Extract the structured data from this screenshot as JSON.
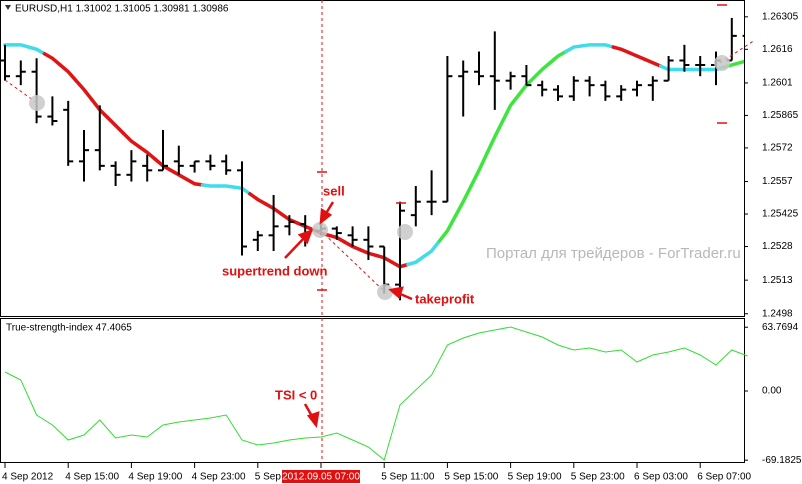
{
  "chart_data": {
    "type": "ohlc",
    "title": "EURUSD,H1  1.31002 1.31005 1.30981 1.30986",
    "watermark": "Портал для трейдеров - ForTrader.ru",
    "categories": [
      "4 Sep 2012",
      null,
      null,
      null,
      "4 Sep 15:00",
      null,
      null,
      null,
      "4 Sep 19:00",
      null,
      null,
      null,
      "4 Sep 23:00",
      null,
      null,
      null,
      "5 Sep",
      null,
      null,
      null,
      "2012.09.05 07:00",
      null,
      null,
      null,
      "5 Sep 11:00",
      null,
      null,
      null,
      "5 Sep 15:00",
      null,
      null,
      null,
      "5 Sep 19:00",
      null,
      null,
      null,
      "5 Sep 23:00",
      null,
      null,
      null,
      "6 Sep 03:00",
      null,
      null,
      null,
      "6 Sep 07:00",
      null,
      null,
      null
    ],
    "open": [
      1.2611,
      1.2604,
      1.2606,
      1.2586,
      1.2589,
      1.2566,
      1.2571,
      1.2564,
      1.256,
      1.2564,
      1.2562,
      1.2566,
      1.2564,
      1.2566,
      1.2566,
      1.2562,
      1.2531,
      1.2533,
      1.2537,
      1.2538,
      1.2535,
      1.2536,
      1.2533,
      1.2531,
      1.2528,
      1.2511,
      1.2542,
      1.2548,
      1.2548,
      1.2604,
      1.2606,
      1.2604,
      1.2602,
      1.2604,
      1.26,
      1.2598,
      1.2595,
      1.2602,
      1.26,
      1.2595,
      1.2598,
      1.26,
      1.2602,
      1.2611,
      1.2609,
      1.2609,
      1.2611,
      1.2622
    ],
    "high": [
      1.2618,
      1.2611,
      1.2612,
      1.2595,
      1.2593,
      1.258,
      1.2591,
      1.2566,
      1.2571,
      1.2569,
      1.258,
      1.2573,
      1.2566,
      1.2569,
      1.2569,
      1.2566,
      1.2535,
      1.2551,
      1.2542,
      1.2542,
      1.2538,
      1.2537,
      1.2537,
      1.2537,
      1.2528,
      1.2548,
      1.2555,
      1.2562,
      1.2613,
      1.2611,
      1.2615,
      1.2624,
      1.2606,
      1.2609,
      1.2602,
      1.26,
      1.2604,
      1.2604,
      1.2602,
      1.26,
      1.2602,
      1.2604,
      1.2613,
      1.2618,
      1.2613,
      1.2615,
      1.263,
      1.2622
    ],
    "low": [
      1.2602,
      1.26,
      1.2583,
      1.2582,
      1.2564,
      1.2557,
      1.2562,
      1.2555,
      1.2557,
      1.2557,
      1.2562,
      1.256,
      1.2561,
      1.2562,
      1.256,
      1.2524,
      1.2526,
      1.2526,
      1.2533,
      1.2528,
      1.2533,
      1.2531,
      1.2528,
      1.2522,
      1.2507,
      1.2504,
      1.2537,
      1.2542,
      1.2548,
      1.2586,
      1.26,
      1.2589,
      1.2598,
      1.26,
      1.2595,
      1.2593,
      1.2593,
      1.2595,
      1.2593,
      1.2593,
      1.2595,
      1.2593,
      1.2602,
      1.2606,
      1.2604,
      1.26,
      1.2611,
      1.26
    ],
    "close": [
      1.2604,
      1.2606,
      1.2586,
      1.2584,
      1.2566,
      1.2571,
      1.2564,
      1.256,
      1.2566,
      1.2562,
      1.2564,
      1.2564,
      1.2566,
      1.2564,
      1.2562,
      1.2528,
      1.2533,
      1.2537,
      1.2539,
      1.2533,
      1.2536,
      1.2534,
      1.2531,
      1.2528,
      1.2511,
      1.2544,
      1.2548,
      1.2548,
      1.2604,
      1.2606,
      1.2604,
      1.2602,
      1.2604,
      1.26,
      1.2598,
      1.2595,
      1.2602,
      1.26,
      1.2595,
      1.2598,
      1.26,
      1.2602,
      1.2611,
      1.2609,
      1.2609,
      1.2611,
      1.2622,
      1.2611
    ],
    "bar_color": "#000000",
    "supertrend": {
      "values": [
        1.2618,
        1.2618,
        1.2616,
        1.2612,
        1.2606,
        1.2598,
        1.2589,
        1.2582,
        1.2575,
        1.257,
        1.2564,
        1.256,
        1.2556,
        1.2555,
        1.2555,
        1.2554,
        1.2549,
        1.2545,
        1.254,
        1.2537,
        1.2534,
        1.2532,
        1.2528,
        1.2525,
        1.2523,
        1.2519,
        1.2521,
        1.2526,
        1.2535,
        1.2548,
        1.2562,
        1.2577,
        1.2591,
        1.26,
        1.2607,
        1.2613,
        1.2617,
        1.2618,
        1.2618,
        1.2616,
        1.2613,
        1.261,
        1.2607,
        1.2607,
        1.2607,
        1.2607,
        1.2609,
        1.2611
      ],
      "colors": [
        "#40dcec",
        "#40dcec",
        "#40dcec",
        "#e01414",
        "#e01414",
        "#e01414",
        "#e01414",
        "#e01414",
        "#e01414",
        "#e01414",
        "#e01414",
        "#e01414",
        "#e01414",
        "#40dcec",
        "#40dcec",
        "#40dcec",
        "#e01414",
        "#e01414",
        "#e01414",
        "#e01414",
        "#e01414",
        "#e01414",
        "#e01414",
        "#e01414",
        "#e01414",
        "#e01414",
        "#40dcec",
        "#40dcec",
        "#3ce63c",
        "#3ce63c",
        "#3ce63c",
        "#3ce63c",
        "#3ce63c",
        "#3ce63c",
        "#3ce63c",
        "#3ce63c",
        "#40dcec",
        "#40dcec",
        "#40dcec",
        "#e01414",
        "#e01414",
        "#e01414",
        "#40dcec",
        "#40dcec",
        "#40dcec",
        "#40dcec",
        "#3ce63c",
        "#3ce63c"
      ]
    },
    "ylim": [
      1.2497,
      1.2638
    ],
    "yticks": [
      1.26305,
      1.2616,
      1.2601,
      1.25865,
      1.2572,
      1.2557,
      1.25425,
      1.2528,
      1.2513,
      1.2498
    ],
    "annotations": [
      "sell",
      "supertrend down",
      "takeprofit",
      "TSI < 0"
    ],
    "indicator": {
      "type": "line",
      "title": "True-strength-index 47.4065",
      "color": "#33dd33",
      "values": [
        19,
        11,
        -24,
        -34,
        -49,
        -44,
        -29,
        -47,
        -44,
        -46,
        -34,
        -31,
        -29,
        -27,
        -24,
        -49,
        -54,
        -52,
        -49,
        -47,
        -46,
        -42,
        -49,
        -56,
        -69,
        -14,
        1,
        16,
        46,
        53,
        58,
        61,
        64,
        59,
        54,
        46,
        41,
        43,
        39,
        41,
        29,
        36,
        39,
        43,
        36,
        26,
        41,
        35
      ],
      "ylim": [
        -71,
        73
      ],
      "yticks": [
        63.7694,
        {
          "value": 0,
          "label": "0.00"
        },
        -69.1825
      ]
    }
  }
}
